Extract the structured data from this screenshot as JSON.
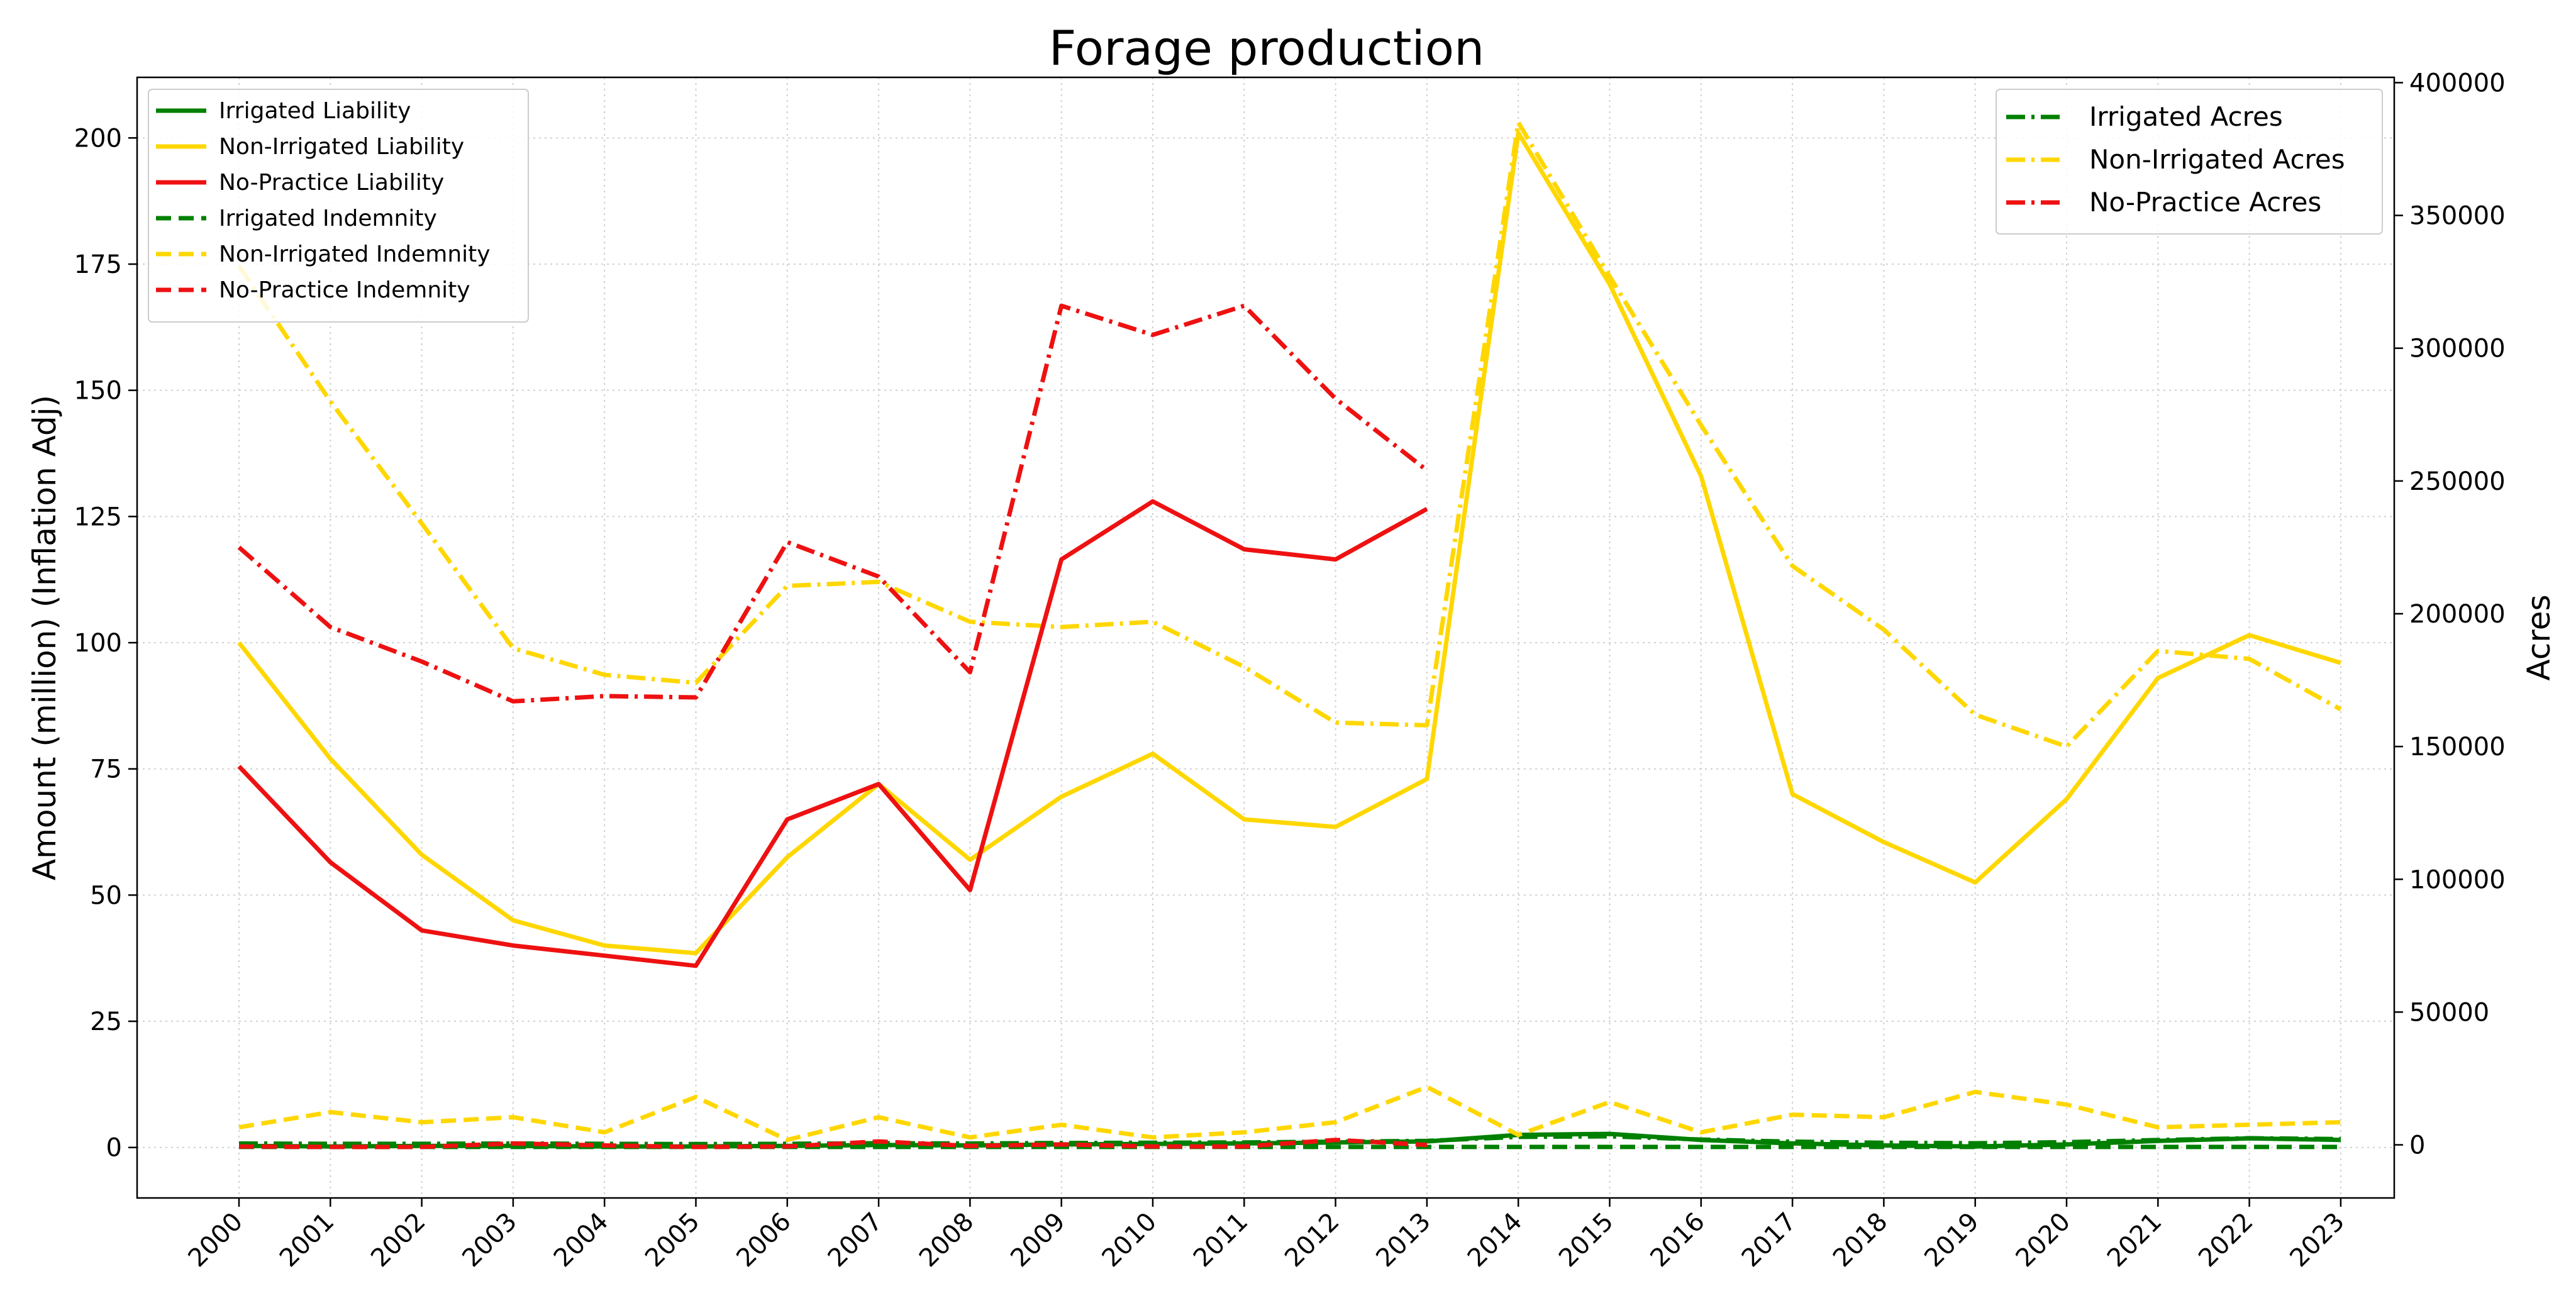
{
  "chart_data": {
    "type": "line",
    "title": "Forage production",
    "ylabel": "Amount (million) (Inflation Adj)",
    "y2label": "Acres",
    "x": [
      2000,
      2001,
      2002,
      2003,
      2004,
      2005,
      2006,
      2007,
      2008,
      2009,
      2010,
      2011,
      2012,
      2013,
      2014,
      2015,
      2016,
      2017,
      2018,
      2019,
      2020,
      2021,
      2022,
      2023
    ],
    "ylim": [
      -10,
      212
    ],
    "y2lim": [
      -20000,
      402000
    ],
    "yticks": [
      0,
      25,
      50,
      75,
      100,
      125,
      150,
      175,
      200
    ],
    "y2ticks": [
      0,
      50000,
      100000,
      150000,
      200000,
      250000,
      300000,
      350000,
      400000
    ],
    "grid": true,
    "legend_left_position": "upper-left",
    "legend_right_position": "upper-right",
    "colors": {
      "green": "#008000",
      "yellow": "#FFD700",
      "red": "#EE1111"
    },
    "series_left": [
      {
        "name": "Irrigated Liability",
        "color": "#008000",
        "style": "solid",
        "values": [
          0.3,
          0.2,
          0.3,
          0.3,
          0.2,
          0.2,
          0.3,
          0.5,
          0.4,
          0.6,
          0.7,
          0.8,
          1.0,
          1.2,
          2.5,
          2.7,
          1.5,
          0.8,
          0.4,
          0.2,
          0.6,
          1.3,
          1.8,
          1.5
        ]
      },
      {
        "name": "Non-Irrigated Liability",
        "color": "#FFD700",
        "style": "solid",
        "values": [
          100,
          77,
          58,
          45,
          40,
          38.5,
          57.5,
          72,
          57,
          69.5,
          78,
          65,
          63.5,
          73,
          201,
          171,
          133,
          70,
          60.5,
          52.5,
          69,
          93,
          101.5,
          96
        ]
      },
      {
        "name": "No-Practice Liability",
        "color": "#EE1111",
        "style": "solid",
        "values": [
          75.5,
          56.5,
          43,
          40,
          38,
          36,
          65,
          72,
          51,
          116.5,
          128,
          118.5,
          116.5,
          126.5,
          null,
          null,
          null,
          null,
          null,
          null,
          null,
          null,
          null,
          null
        ]
      },
      {
        "name": "Irrigated Indemnity",
        "color": "#008000",
        "style": "dashed",
        "values": [
          0.1,
          0.1,
          0.1,
          0.1,
          0.1,
          0.1,
          0.1,
          0.1,
          0.1,
          0.1,
          0.1,
          0.1,
          0.1,
          0.1,
          0.1,
          0.1,
          0.1,
          0.1,
          0.1,
          0.1,
          0.1,
          0.1,
          0.1,
          0.1
        ]
      },
      {
        "name": "Non-Irrigated Indemnity",
        "color": "#FFD700",
        "style": "dashed",
        "values": [
          4,
          7,
          5,
          6,
          3,
          10,
          1.5,
          6,
          2,
          4.5,
          2,
          3,
          5,
          12,
          2.5,
          9,
          3,
          6.5,
          6,
          11,
          8.5,
          4,
          4.5,
          5
        ]
      },
      {
        "name": "No-Practice Indemnity",
        "color": "#EE1111",
        "style": "dashed",
        "values": [
          0.2,
          0.1,
          0.1,
          0.8,
          0.4,
          0.1,
          0.2,
          1.2,
          0.3,
          0.6,
          0.2,
          0.2,
          1.5,
          0.5,
          null,
          null,
          null,
          null,
          null,
          null,
          null,
          null,
          null,
          null
        ]
      }
    ],
    "series_right": [
      {
        "name": "Irrigated Acres",
        "color": "#008000",
        "style": "dashdot",
        "values": [
          500,
          400,
          400,
          500,
          400,
          300,
          400,
          600,
          500,
          700,
          800,
          900,
          1200,
          1500,
          3000,
          3200,
          2000,
          1200,
          800,
          600,
          1000,
          1800,
          2500,
          2200
        ]
      },
      {
        "name": "Non-Irrigated Acres",
        "color": "#FFD700",
        "style": "dashdot",
        "values": [
          331000,
          280000,
          234000,
          187000,
          177000,
          174000,
          210500,
          212000,
          197000,
          195000,
          197000,
          180000,
          159000,
          158000,
          385000,
          327000,
          271000,
          218000,
          194000,
          162000,
          150000,
          186000,
          183000,
          164000
        ]
      },
      {
        "name": "No-Practice Acres",
        "color": "#EE1111",
        "style": "dashdot",
        "values": [
          225000,
          195000,
          182000,
          167000,
          169000,
          168500,
          227000,
          214000,
          178000,
          316000,
          305000,
          316000,
          281000,
          254000,
          null,
          null,
          null,
          null,
          null,
          null,
          null,
          null,
          null,
          null
        ]
      }
    ]
  }
}
